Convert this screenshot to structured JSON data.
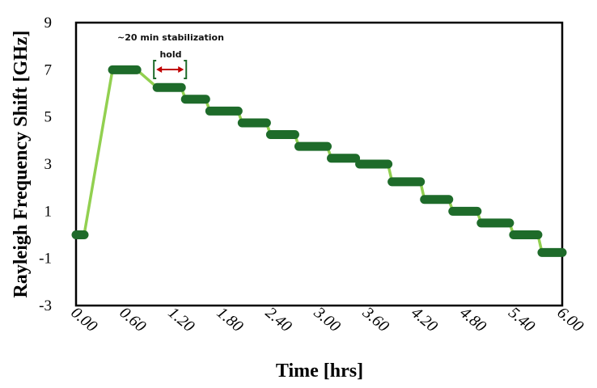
{
  "chart_data": {
    "type": "line",
    "xlabel": "Time [hrs]",
    "ylabel": "Rayleigh Frequency Shift [GHz]",
    "xlim": [
      0,
      6.0
    ],
    "ylim": [
      -3,
      9
    ],
    "x_ticks": [
      "0.00",
      "0.60",
      "1.20",
      "1.80",
      "2.40",
      "3.00",
      "3.60",
      "4.20",
      "4.80",
      "5.40",
      "6.00"
    ],
    "y_ticks": [
      "9",
      "7",
      "5",
      "3",
      "1",
      "-1",
      "-3"
    ],
    "grid": false,
    "line_color": "#92d050",
    "hold_color": "#1e6b2a",
    "annotation": {
      "text_line1": "~20 min stabilization",
      "text_line2": "hold",
      "arrow_color": "#c00000",
      "bracket_color": "#1e6b2a"
    },
    "series": [
      {
        "x": [
          0.0,
          0.1,
          0.45,
          0.75,
          1.0,
          1.3,
          1.35,
          1.6,
          1.65,
          2.0,
          2.05,
          2.35,
          2.4,
          2.7,
          2.75,
          3.1,
          3.15,
          3.45,
          3.5,
          3.85,
          3.9,
          4.25,
          4.3,
          4.6,
          4.65,
          4.95,
          5.0,
          5.35,
          5.4,
          5.7,
          5.75,
          6.0
        ],
        "y": [
          0.0,
          0.0,
          7.0,
          7.0,
          6.25,
          6.25,
          5.75,
          5.75,
          5.25,
          5.25,
          4.75,
          4.75,
          4.25,
          4.25,
          3.75,
          3.75,
          3.25,
          3.25,
          3.0,
          3.0,
          2.25,
          2.25,
          1.5,
          1.5,
          1.0,
          1.0,
          0.5,
          0.5,
          0.0,
          0.0,
          -0.75,
          -0.75
        ]
      }
    ],
    "holds": [
      {
        "x_start": 0.0,
        "x_end": 0.1,
        "y": 0.0
      },
      {
        "x_start": 0.45,
        "x_end": 0.75,
        "y": 7.0
      },
      {
        "x_start": 1.0,
        "x_end": 1.3,
        "y": 6.25
      },
      {
        "x_start": 1.35,
        "x_end": 1.6,
        "y": 5.75
      },
      {
        "x_start": 1.65,
        "x_end": 2.0,
        "y": 5.25
      },
      {
        "x_start": 2.05,
        "x_end": 2.35,
        "y": 4.75
      },
      {
        "x_start": 2.4,
        "x_end": 2.7,
        "y": 4.25
      },
      {
        "x_start": 2.75,
        "x_end": 3.1,
        "y": 3.75
      },
      {
        "x_start": 3.15,
        "x_end": 3.45,
        "y": 3.25
      },
      {
        "x_start": 3.5,
        "x_end": 3.85,
        "y": 3.0
      },
      {
        "x_start": 3.9,
        "x_end": 4.25,
        "y": 2.25
      },
      {
        "x_start": 4.3,
        "x_end": 4.6,
        "y": 1.5
      },
      {
        "x_start": 4.65,
        "x_end": 4.95,
        "y": 1.0
      },
      {
        "x_start": 5.0,
        "x_end": 5.35,
        "y": 0.5
      },
      {
        "x_start": 5.4,
        "x_end": 5.7,
        "y": 0.0
      },
      {
        "x_start": 5.75,
        "x_end": 6.0,
        "y": -0.75
      }
    ],
    "hold_bracket": {
      "x_start": 1.0,
      "x_end": 1.4
    }
  }
}
